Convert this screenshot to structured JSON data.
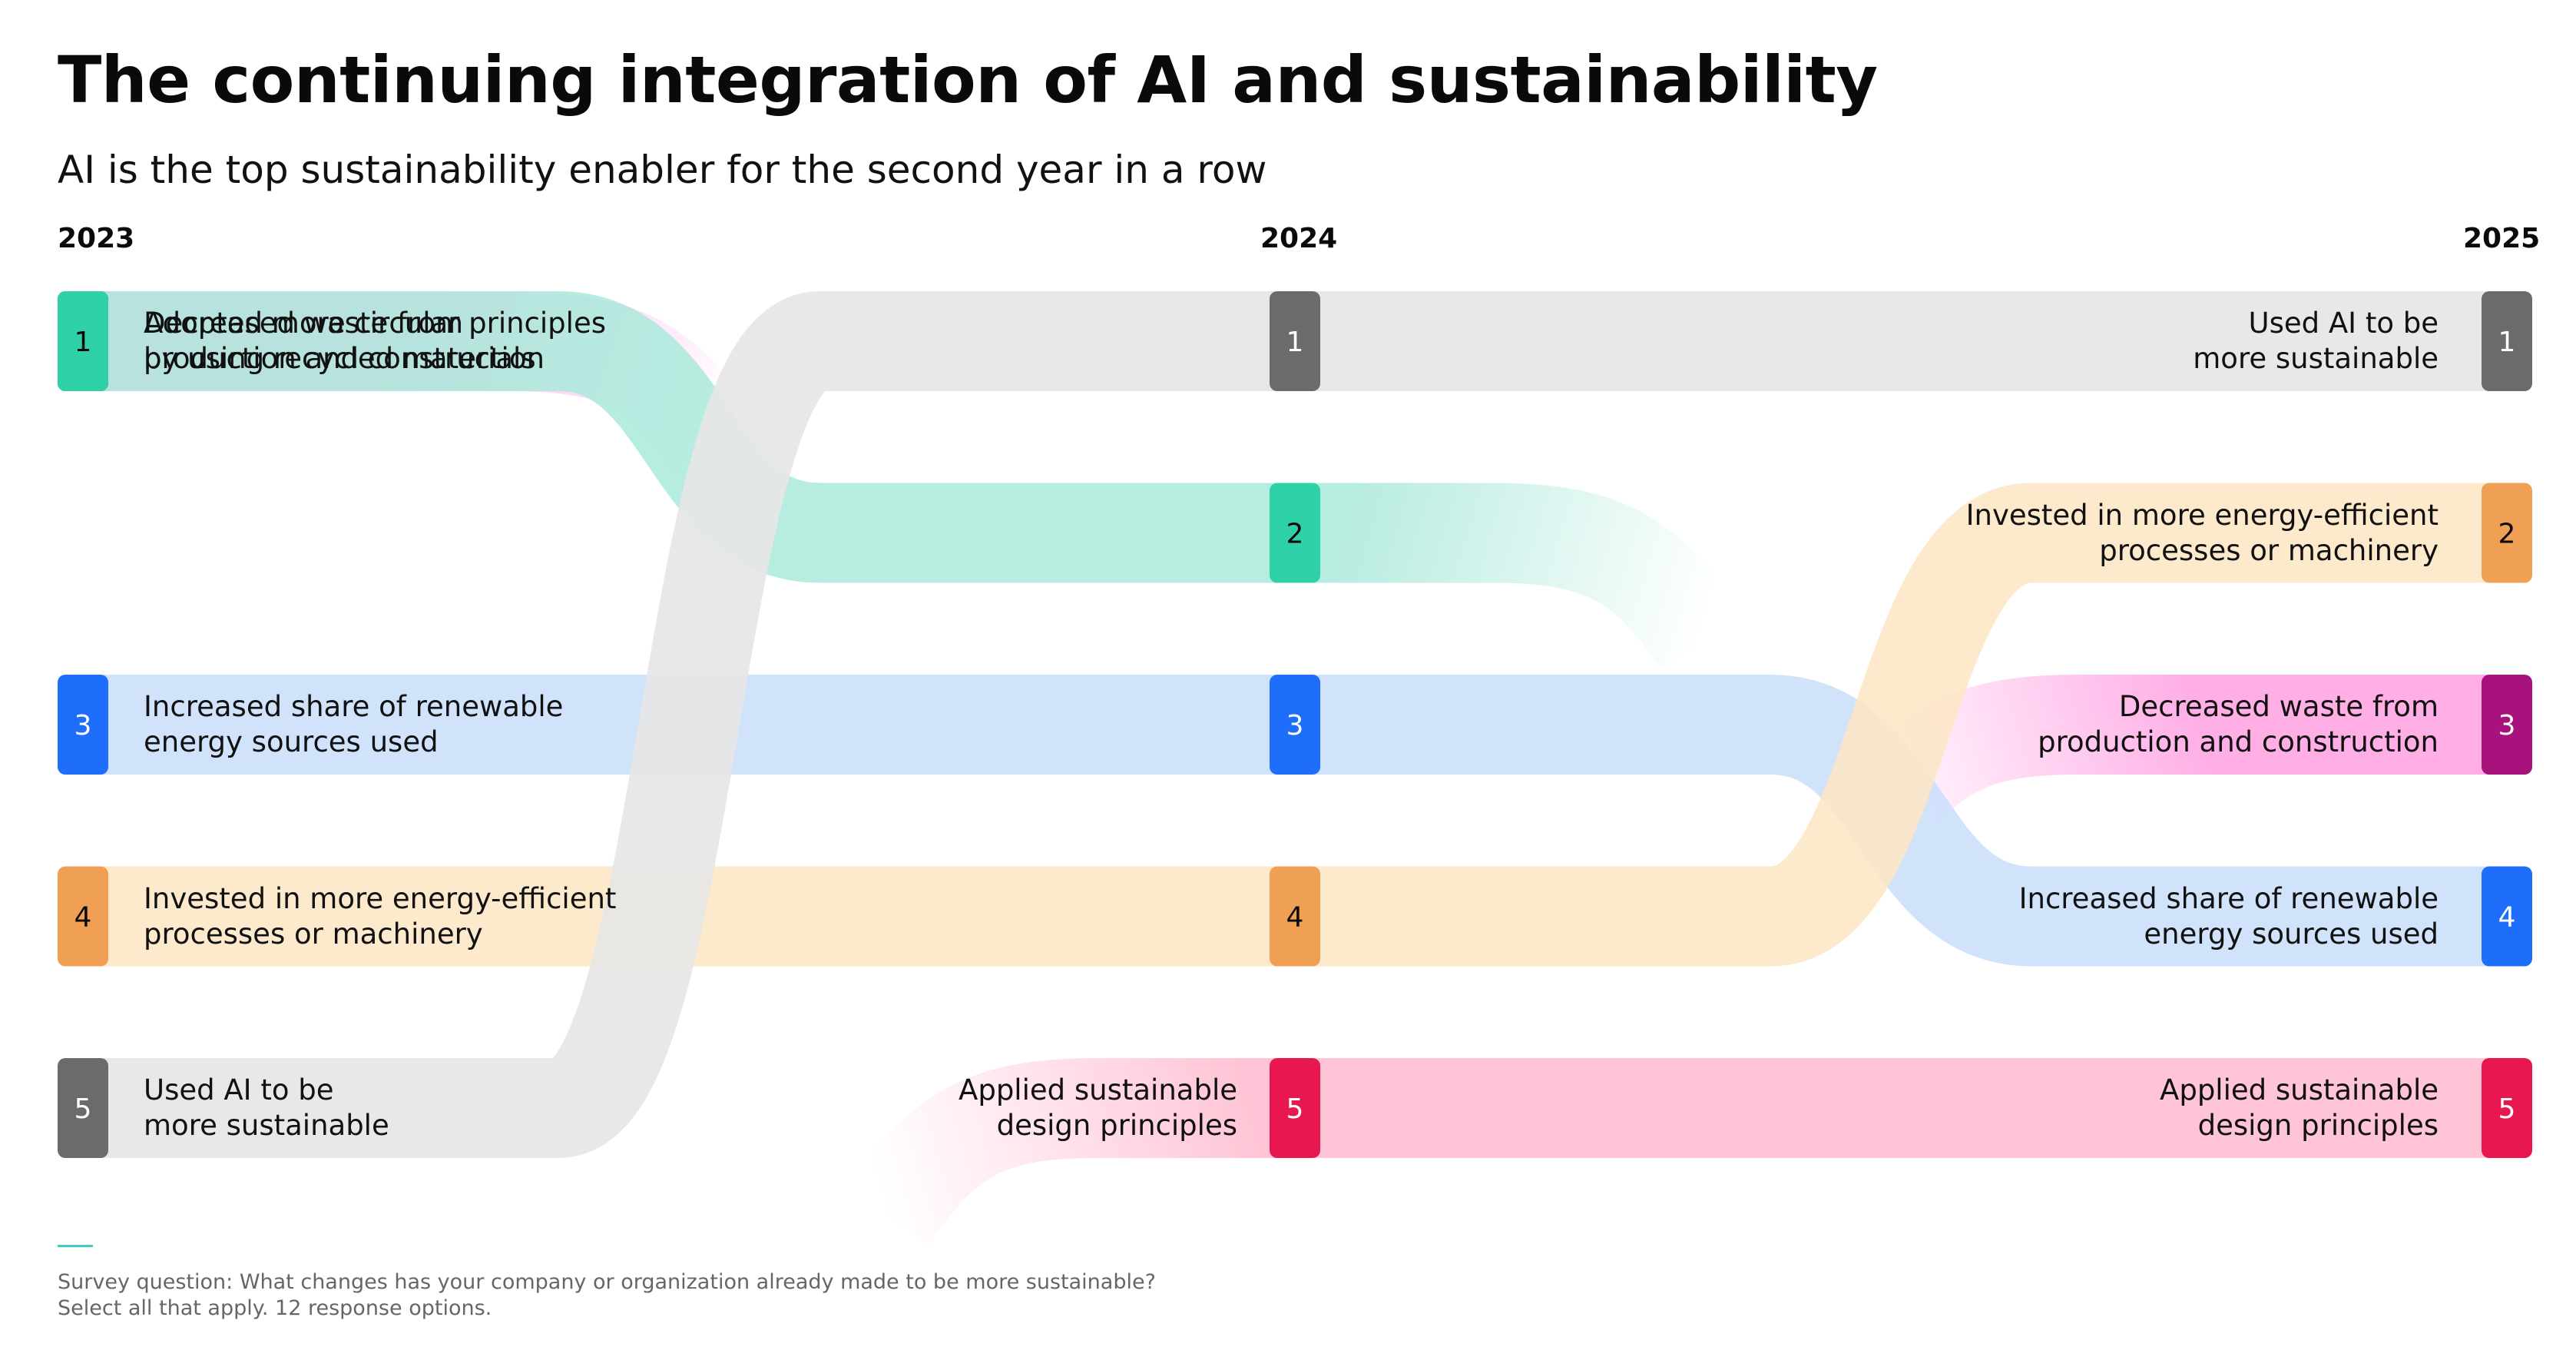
{
  "title": "The continuing integration of AI and sustainability",
  "subtitle": "AI is the top sustainability enabler for the second year in a row",
  "footnote": {
    "line1": "Survey question: What changes has your company or organization already made to be more sustainable?",
    "line2": "Select all that apply. 12 response options."
  },
  "chart_data": {
    "type": "bump",
    "years": [
      "2023",
      "2024",
      "2025"
    ],
    "series": [
      {
        "name": "Decreased waste from production and construction",
        "label": "Decreased waste from\nproduction and construction",
        "ranks": [
          1,
          null,
          3
        ],
        "fill": "#ffa3e3",
        "accent": "#a8127d",
        "badge_text": "#ffffff"
      },
      {
        "name": "Adopted more circular principles by using recycled materials",
        "label": "Adopted more circular principles\nby using recycled materials",
        "ranks": [
          1,
          2,
          null
        ],
        "fill": "#ade9dc",
        "accent": "#2fd1a8",
        "badge_text": "#0a0a0a"
      },
      {
        "name": "Increased share of renewable energy sources used",
        "label": "Increased share of renewable\nenergy sources used",
        "ranks": [
          3,
          3,
          4
        ],
        "fill": "#cbdffb",
        "accent": "#1e6dfb",
        "badge_text": "#ffffff"
      },
      {
        "name": "Invested in more energy-efficient processes or machinery",
        "label": "Invested in more energy-efficient\nprocesses or machinery",
        "ranks": [
          4,
          4,
          2
        ],
        "fill": "#fde6c5",
        "accent": "#f0a054",
        "badge_text": "#0a0a0a"
      },
      {
        "name": "Used AI to be more sustainable",
        "label": "Used AI to be\nmore sustainable",
        "ranks": [
          5,
          1,
          1
        ],
        "fill": "#e6e6e6",
        "accent": "#6b6b6b",
        "badge_text": "#ffffff"
      },
      {
        "name": "Applied sustainable design principles",
        "label": "Applied sustainable\ndesign principles",
        "ranks": [
          null,
          5,
          5
        ],
        "fill": "#ffbdd0",
        "accent": "#e8174f",
        "badge_text": "#ffffff"
      }
    ]
  }
}
